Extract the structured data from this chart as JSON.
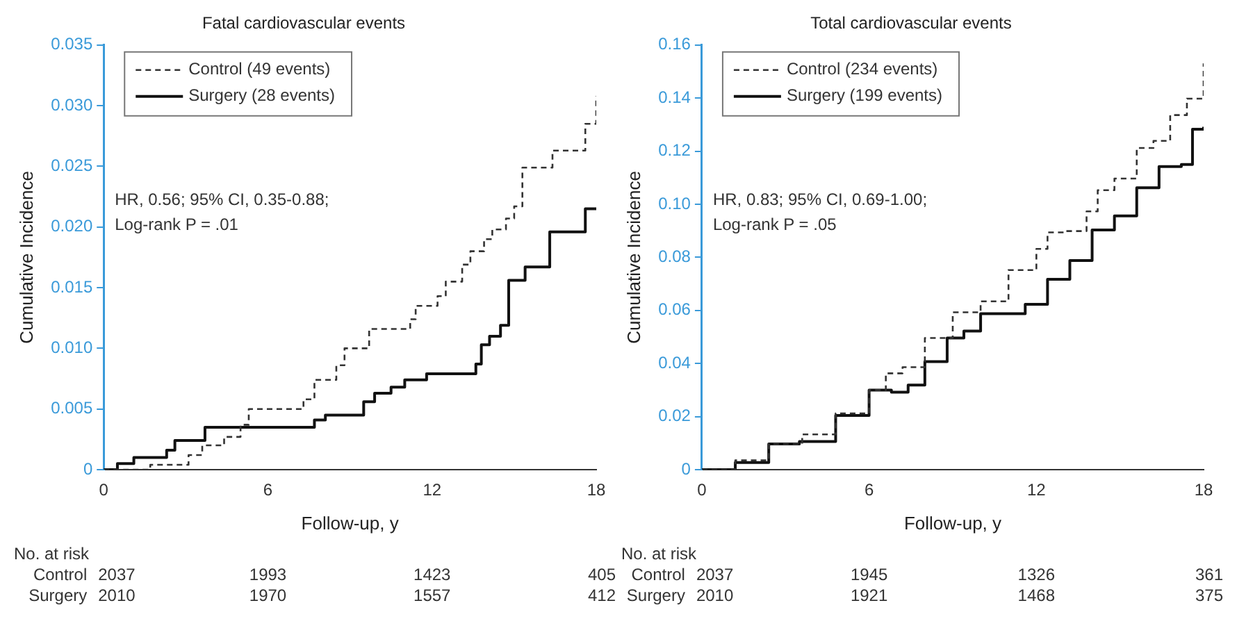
{
  "chart_data": [
    {
      "type": "step",
      "title": "Fatal cardiovascular events",
      "xlabel": "Follow-up, y",
      "ylabel": "Cumulative Incidence",
      "legend": "top left",
      "grid": false,
      "xlim": [
        0,
        18
      ],
      "xticks": [
        0,
        6,
        12,
        18
      ],
      "ylim": [
        0,
        0.035
      ],
      "yticks": [
        0,
        0.005,
        {
          "value": 0.01,
          "label": "0.010"
        },
        0.015,
        {
          "value": 0.02,
          "label": "0.020"
        },
        0.025,
        {
          "value": 0.03,
          "label": "0.030"
        },
        0.035
      ],
      "series": [
        {
          "name": "Control (49 events)",
          "color": "#333333",
          "line_style": "dashed",
          "x": [
            0,
            1.7,
            3.1,
            3.6,
            4.4,
            5.0,
            5.3,
            7.3,
            7.7,
            8.5,
            8.8,
            9.7,
            11.2,
            11.4,
            12.2,
            12.5,
            13.1,
            13.4,
            13.9,
            14.2,
            14.7,
            15.0,
            15.3,
            16.4,
            17.6,
            18.0
          ],
          "values": [
            0,
            0.0004,
            0.0012,
            0.002,
            0.0027,
            0.0037,
            0.005,
            0.0058,
            0.0074,
            0.0086,
            0.01,
            0.0116,
            0.0124,
            0.0135,
            0.0143,
            0.0155,
            0.0169,
            0.018,
            0.019,
            0.0198,
            0.0207,
            0.0217,
            0.0249,
            0.0263,
            0.0285,
            0.0308
          ]
        },
        {
          "name": "Surgery (28 events)",
          "color": "#111111",
          "line_style": "solid",
          "x": [
            0,
            0.5,
            1.1,
            2.3,
            2.6,
            3.7,
            7.7,
            8.1,
            9.5,
            9.9,
            10.5,
            11.0,
            11.8,
            13.6,
            13.8,
            14.1,
            14.5,
            14.8,
            15.4,
            16.3,
            17.6,
            18.0
          ],
          "values": [
            0,
            0.0005,
            0.001,
            0.0016,
            0.0024,
            0.0035,
            0.0041,
            0.0045,
            0.0056,
            0.0063,
            0.0068,
            0.0074,
            0.0079,
            0.0087,
            0.0103,
            0.011,
            0.0119,
            0.0156,
            0.0167,
            0.0196,
            0.0215,
            0.0215
          ]
        }
      ],
      "annotations": [
        "HR, 0.56; 95% CI, 0.35-0.88;",
        "Log-rank P = .01",
        "No. at risk",
        "Control",
        "2037",
        "1993",
        "1423",
        "405",
        "Surgery",
        "2010",
        "1970",
        "1557",
        "412"
      ]
    },
    {
      "type": "step",
      "title": "Total cardiovascular events",
      "xlabel": "Follow-up, y",
      "ylabel": "Cumulative Incidence",
      "legend": "top left",
      "grid": false,
      "xlim": [
        0,
        18
      ],
      "xticks": [
        0,
        6,
        12,
        18
      ],
      "ylim": [
        0,
        0.16
      ],
      "yticks": [
        0,
        0.02,
        0.04,
        0.06,
        0.08,
        {
          "value": 0.1,
          "label": "0.10"
        },
        0.12,
        0.14,
        0.16
      ],
      "series": [
        {
          "name": "Control (234 events)",
          "color": "#333333",
          "line_style": "dashed",
          "x": [
            0,
            1.2,
            2.4,
            3.6,
            4.8,
            6.0,
            6.6,
            7.2,
            8.0,
            9.0,
            10.0,
            11.0,
            12.0,
            12.4,
            13.0,
            13.8,
            14.2,
            14.8,
            15.6,
            16.2,
            16.8,
            17.4,
            18.0
          ],
          "values": [
            0,
            0.0035,
            0.0097,
            0.0133,
            0.0212,
            0.03,
            0.0363,
            0.0386,
            0.0496,
            0.0593,
            0.0634,
            0.0752,
            0.0832,
            0.0894,
            0.0899,
            0.0973,
            0.1053,
            0.1097,
            0.1212,
            0.1239,
            0.1336,
            0.1398,
            0.1531
          ]
        },
        {
          "name": "Surgery (199 events)",
          "color": "#111111",
          "line_style": "solid",
          "x": [
            0,
            1.2,
            2.4,
            3.5,
            4.8,
            6.0,
            6.8,
            7.4,
            8.0,
            8.8,
            9.4,
            10.0,
            11.6,
            12.4,
            13.2,
            14.0,
            14.8,
            15.6,
            16.4,
            17.2,
            17.6,
            18.0
          ],
          "values": [
            0,
            0.0027,
            0.0097,
            0.0106,
            0.0204,
            0.03,
            0.0292,
            0.0319,
            0.0407,
            0.0496,
            0.0522,
            0.0588,
            0.0623,
            0.0717,
            0.0788,
            0.0903,
            0.0956,
            0.1062,
            0.1142,
            0.115,
            0.1283,
            0.1292
          ]
        }
      ],
      "annotations": [
        "HR, 0.83; 95% CI, 0.69-1.00;",
        "Log-rank P = .05",
        "No. at risk",
        "Control",
        "2037",
        "1945",
        "1326",
        "361",
        "Surgery",
        "2010",
        "1921",
        "1468",
        "375"
      ]
    }
  ]
}
